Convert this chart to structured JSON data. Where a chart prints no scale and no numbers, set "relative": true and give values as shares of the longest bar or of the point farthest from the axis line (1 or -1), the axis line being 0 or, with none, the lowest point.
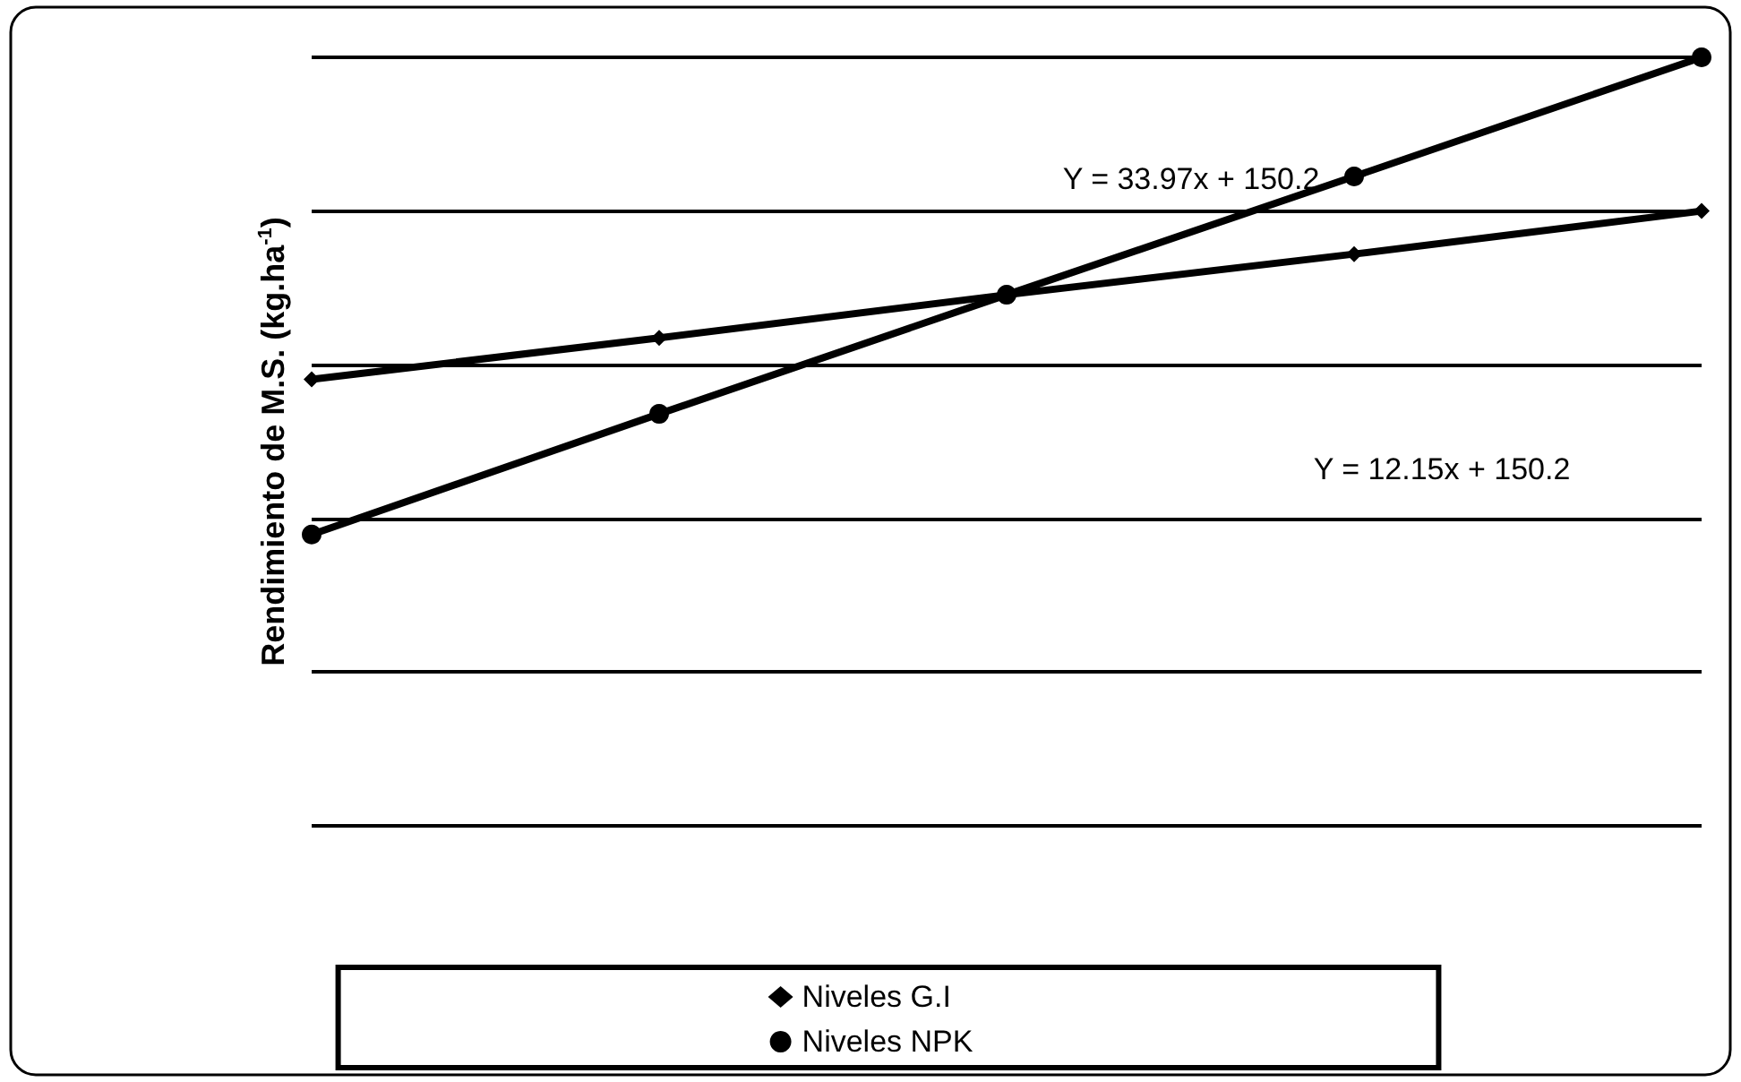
{
  "chart_data": {
    "type": "line",
    "relative": true,
    "ylabel": "Rendimiento de M.S. (kg.ha$^{-1}$)",
    "categories": [
      null,
      null,
      null,
      null,
      null
    ],
    "series": [
      {
        "name": "Niveles G.I",
        "color": "#000000",
        "marker": "diamond",
        "values": [
          0.581,
          0.635,
          0.691,
          0.744,
          0.8
        ]
      },
      {
        "name": "Niveles NPK",
        "color": "#000000",
        "marker": "circle",
        "values": [
          0.379,
          0.536,
          0.691,
          0.845,
          1.0
        ]
      }
    ],
    "annotations": [
      "Y = 33.97x + 150.2",
      "Y = 12.15x + 150.2"
    ],
    "grid": "y",
    "legend": "bottom",
    "line_style": "solid"
  }
}
